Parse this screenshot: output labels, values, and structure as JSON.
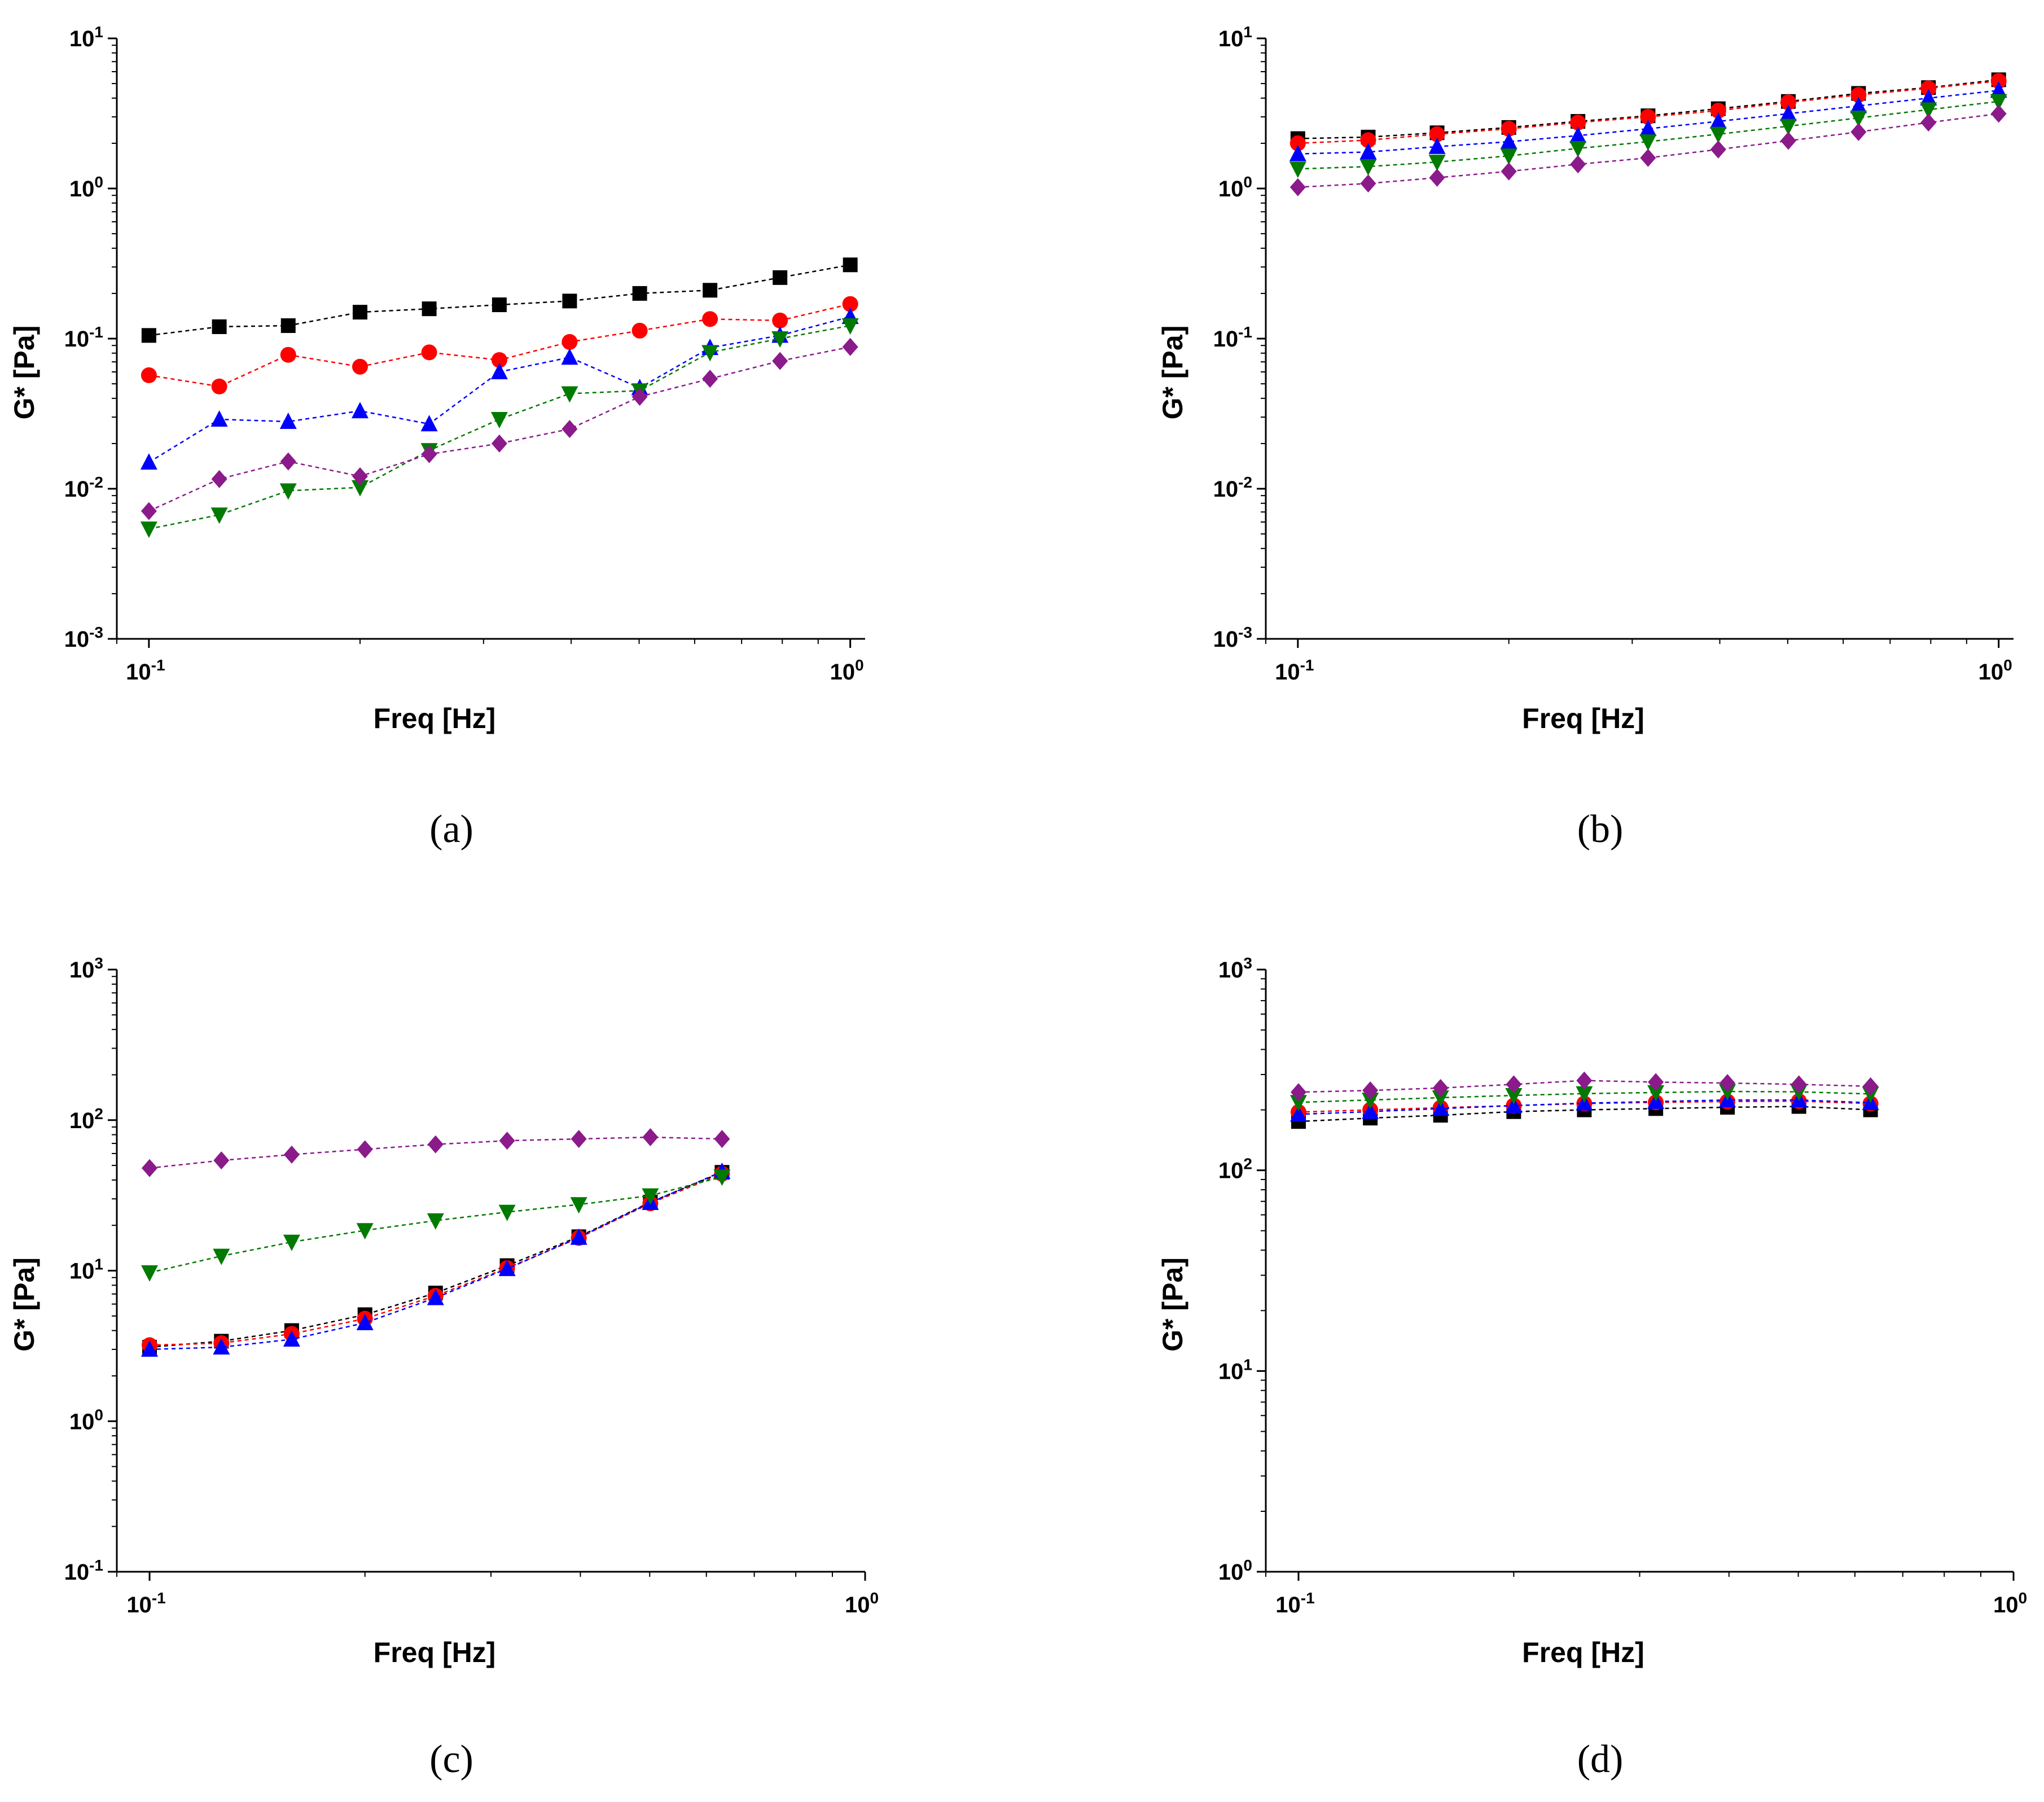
{
  "colors": {
    "black": "#000000",
    "red": "#ff0000",
    "blue": "#0000ff",
    "green": "#007a00",
    "purple": "#8b1a8b"
  },
  "chart_data": [
    {
      "type": "scatter",
      "panel_label": "(a)",
      "xlabel": "Freq [Hz]",
      "ylabel": "G* [Pa]",
      "xscale": "log",
      "yscale": "log",
      "xlim": [
        0.09,
        1.05
      ],
      "ylim": [
        0.001,
        10
      ],
      "xticks": [
        {
          "base": "10",
          "exp": "-1"
        },
        {
          "base": "10",
          "exp": "0"
        }
      ],
      "yticks": [
        {
          "base": "10",
          "exp": "-3"
        },
        {
          "base": "10",
          "exp": "-2"
        },
        {
          "base": "10",
          "exp": "-1"
        },
        {
          "base": "10",
          "exp": "0"
        },
        {
          "base": "10",
          "exp": "1"
        }
      ],
      "x": [
        0.1,
        0.126,
        0.158,
        0.2,
        0.251,
        0.316,
        0.398,
        0.501,
        0.631,
        0.794,
        1.0
      ],
      "series": [
        {
          "marker": "square",
          "color": "black",
          "values": [
            0.105,
            0.12,
            0.122,
            0.15,
            0.158,
            0.168,
            0.178,
            0.2,
            0.21,
            0.255,
            0.31
          ]
        },
        {
          "marker": "circle",
          "color": "red",
          "values": [
            0.057,
            0.048,
            0.078,
            0.065,
            0.081,
            0.072,
            0.095,
            0.113,
            0.135,
            0.132,
            0.17
          ]
        },
        {
          "marker": "triangle-up",
          "color": "blue",
          "values": [
            0.015,
            0.029,
            0.028,
            0.033,
            0.027,
            0.06,
            0.075,
            0.047,
            0.087,
            0.105,
            0.14
          ]
        },
        {
          "marker": "triangle-down",
          "color": "green",
          "values": [
            0.0054,
            0.0067,
            0.0097,
            0.0102,
            0.018,
            0.029,
            0.043,
            0.045,
            0.081,
            0.1,
            0.122
          ]
        },
        {
          "marker": "diamond",
          "color": "purple",
          "values": [
            0.0071,
            0.0116,
            0.0152,
            0.0121,
            0.017,
            0.02,
            0.025,
            0.041,
            0.054,
            0.071,
            0.088
          ]
        }
      ]
    },
    {
      "type": "scatter",
      "panel_label": "(b)",
      "xlabel": "Freq [Hz]",
      "ylabel": "G* [Pa]",
      "xscale": "log",
      "yscale": "log",
      "xlim": [
        0.09,
        1.05
      ],
      "ylim": [
        0.001,
        10
      ],
      "xticks": [
        {
          "base": "10",
          "exp": "-1"
        },
        {
          "base": "10",
          "exp": "0"
        }
      ],
      "yticks": [
        {
          "base": "10",
          "exp": "-3"
        },
        {
          "base": "10",
          "exp": "-2"
        },
        {
          "base": "10",
          "exp": "-1"
        },
        {
          "base": "10",
          "exp": "0"
        },
        {
          "base": "10",
          "exp": "1"
        }
      ],
      "x": [
        0.1,
        0.126,
        0.158,
        0.2,
        0.251,
        0.316,
        0.398,
        0.501,
        0.631,
        0.794,
        1.0
      ],
      "series": [
        {
          "marker": "square",
          "color": "black",
          "values": [
            2.15,
            2.2,
            2.35,
            2.55,
            2.8,
            3.05,
            3.4,
            3.8,
            4.3,
            4.7,
            5.3
          ]
        },
        {
          "marker": "circle",
          "color": "red",
          "values": [
            2.0,
            2.1,
            2.3,
            2.5,
            2.75,
            3.0,
            3.3,
            3.75,
            4.2,
            4.65,
            5.2
          ]
        },
        {
          "marker": "triangle-up",
          "color": "blue",
          "values": [
            1.7,
            1.75,
            1.9,
            2.05,
            2.25,
            2.5,
            2.8,
            3.15,
            3.55,
            4.0,
            4.5
          ]
        },
        {
          "marker": "triangle-down",
          "color": "green",
          "values": [
            1.35,
            1.4,
            1.5,
            1.65,
            1.85,
            2.05,
            2.3,
            2.6,
            2.95,
            3.35,
            3.8
          ]
        },
        {
          "marker": "diamond",
          "color": "purple",
          "values": [
            1.02,
            1.08,
            1.18,
            1.3,
            1.45,
            1.6,
            1.82,
            2.08,
            2.38,
            2.75,
            3.15
          ]
        }
      ]
    },
    {
      "type": "scatter",
      "panel_label": "(c)",
      "xlabel": "Freq [Hz]",
      "ylabel": "G* [Pa]",
      "xscale": "log",
      "yscale": "log",
      "xlim": [
        0.09,
        1.0
      ],
      "ylim": [
        0.1,
        1000
      ],
      "xticks": [
        {
          "base": "10",
          "exp": "-1"
        },
        {
          "base": "10",
          "exp": "0"
        }
      ],
      "yticks": [
        {
          "base": "10",
          "exp": "-1"
        },
        {
          "base": "10",
          "exp": "0"
        },
        {
          "base": "10",
          "exp": "1"
        },
        {
          "base": "10",
          "exp": "2"
        },
        {
          "base": "10",
          "exp": "3"
        }
      ],
      "x": [
        0.1,
        0.126,
        0.158,
        0.2,
        0.251,
        0.316,
        0.398,
        0.501,
        0.631
      ],
      "series": [
        {
          "marker": "square",
          "color": "black",
          "values": [
            3.1,
            3.4,
            4.0,
            5.1,
            7.1,
            10.8,
            16.8,
            28.5,
            45.0
          ]
        },
        {
          "marker": "circle",
          "color": "red",
          "values": [
            3.2,
            3.3,
            3.8,
            4.8,
            6.8,
            10.4,
            16.5,
            28.0,
            44.0
          ]
        },
        {
          "marker": "triangle-up",
          "color": "blue",
          "values": [
            3.0,
            3.1,
            3.5,
            4.5,
            6.6,
            10.3,
            16.6,
            28.3,
            45.5
          ]
        },
        {
          "marker": "triangle-down",
          "color": "green",
          "values": [
            9.7,
            12.5,
            15.5,
            18.5,
            21.5,
            24.5,
            27.5,
            31.5,
            42.0
          ]
        },
        {
          "marker": "diamond",
          "color": "purple",
          "values": [
            48.0,
            54.0,
            59.0,
            64.0,
            69.0,
            73.0,
            75.0,
            77.0,
            75.0
          ]
        }
      ]
    },
    {
      "type": "scatter",
      "panel_label": "(d)",
      "xlabel": "Freq [Hz]",
      "ylabel": "G* [Pa]",
      "xscale": "log",
      "yscale": "log",
      "xlim": [
        0.09,
        1.0
      ],
      "ylim": [
        1,
        1000
      ],
      "xticks": [
        {
          "base": "10",
          "exp": "-1"
        },
        {
          "base": "10",
          "exp": "0"
        }
      ],
      "yticks": [
        {
          "base": "10",
          "exp": "0"
        },
        {
          "base": "10",
          "exp": "1"
        },
        {
          "base": "10",
          "exp": "2"
        },
        {
          "base": "10",
          "exp": "3"
        }
      ],
      "x": [
        0.1,
        0.126,
        0.158,
        0.2,
        0.251,
        0.316,
        0.398,
        0.501,
        0.631
      ],
      "series": [
        {
          "marker": "square",
          "color": "black",
          "values": [
            175,
            182,
            188,
            196,
            200,
            203,
            206,
            208,
            200
          ]
        },
        {
          "marker": "circle",
          "color": "red",
          "values": [
            195,
            200,
            205,
            210,
            215,
            218,
            220,
            221,
            215
          ]
        },
        {
          "marker": "triangle-up",
          "color": "blue",
          "values": [
            190,
            196,
            203,
            210,
            216,
            220,
            224,
            224,
            217
          ]
        },
        {
          "marker": "triangle-down",
          "color": "green",
          "values": [
            218,
            224,
            230,
            236,
            241,
            244,
            247,
            246,
            240
          ]
        },
        {
          "marker": "diamond",
          "color": "purple",
          "values": [
            245,
            250,
            257,
            268,
            280,
            275,
            272,
            268,
            262
          ]
        }
      ]
    }
  ]
}
